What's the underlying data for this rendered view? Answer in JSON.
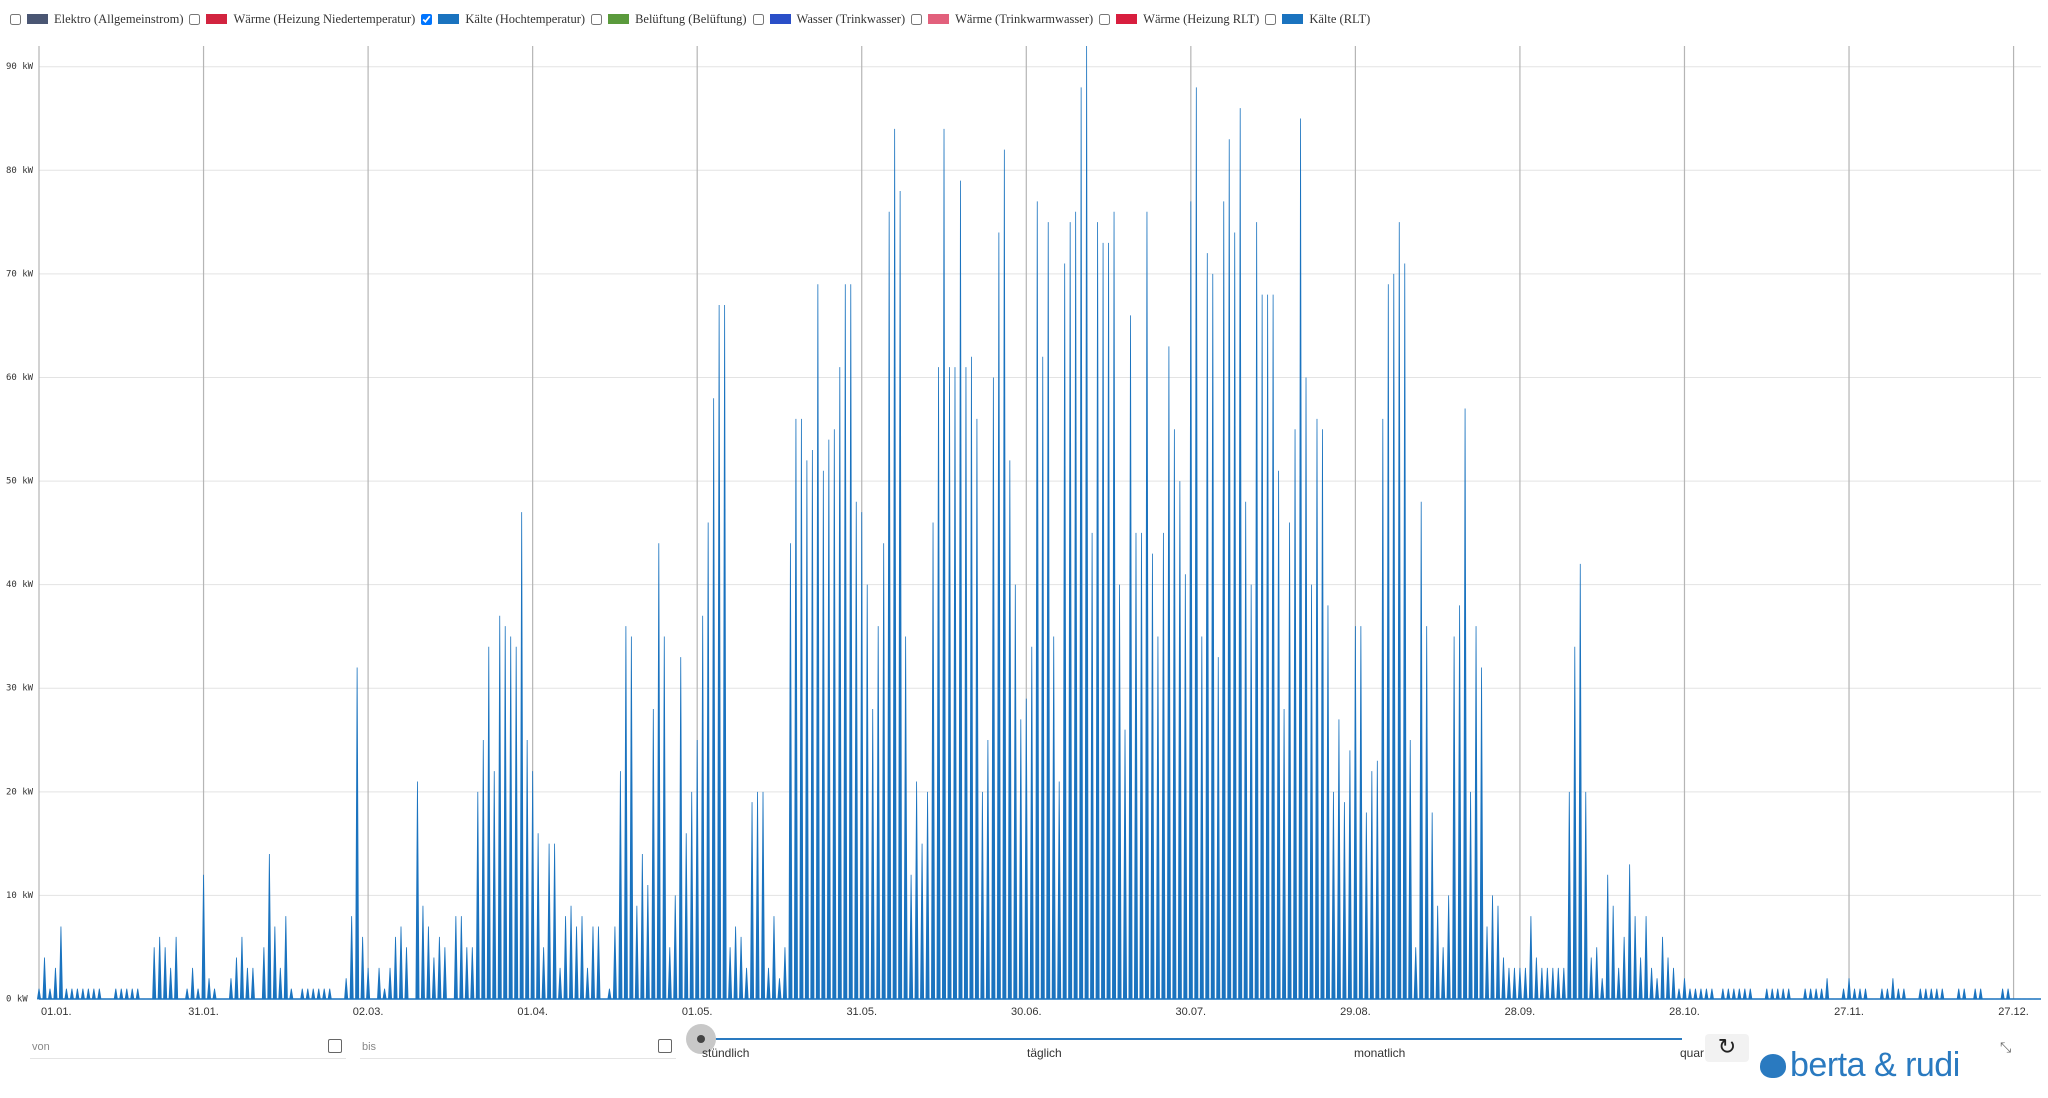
{
  "chart_data": {
    "type": "spike",
    "series": [
      {
        "name": "Elektro (Allgemeinstrom)",
        "color": "#4a5673",
        "checked": false
      },
      {
        "name": "Wärme (Heizung Niedertemperatur)",
        "color": "#d2243f",
        "checked": false
      },
      {
        "name": "Kälte (Hochtemperatur)",
        "color": "#1a73bf",
        "checked": true,
        "x": [
          0,
          1,
          2,
          3,
          4,
          5,
          6,
          7,
          8,
          9,
          10,
          11,
          12,
          13,
          14,
          15,
          16,
          17,
          18,
          19,
          20,
          21,
          22,
          23,
          24,
          25,
          26,
          27,
          28,
          29,
          30,
          31,
          32,
          33,
          34,
          35,
          36,
          37,
          38,
          39,
          40,
          41,
          42,
          43,
          44,
          45,
          46,
          47,
          48,
          49,
          50,
          51,
          52,
          53,
          54,
          55,
          56,
          57,
          58,
          59,
          60,
          61,
          62,
          63,
          64,
          65,
          66,
          67,
          68,
          69,
          70,
          71,
          72,
          73,
          74,
          75,
          76,
          77,
          78,
          79,
          80,
          81,
          82,
          83,
          84,
          85,
          86,
          87,
          88,
          89,
          90,
          91,
          92,
          93,
          94,
          95,
          96,
          97,
          98,
          99,
          100,
          101,
          102,
          103,
          104,
          105,
          106,
          107,
          108,
          109,
          110,
          111,
          112,
          113,
          114,
          115,
          116,
          117,
          118,
          119,
          120,
          121,
          122,
          123,
          124,
          125,
          126,
          127,
          128,
          129,
          130,
          131,
          132,
          133,
          134,
          135,
          136,
          137,
          138,
          139,
          140,
          141,
          142,
          143,
          144,
          145,
          146,
          147,
          148,
          149,
          150,
          151,
          152,
          153,
          154,
          155,
          156,
          157,
          158,
          159,
          160,
          161,
          162,
          163,
          164,
          165,
          166,
          167,
          168,
          169,
          170,
          171,
          172,
          173,
          174,
          175,
          176,
          177,
          178,
          179,
          180,
          181,
          182,
          183,
          184,
          185,
          186,
          187,
          188,
          189,
          190,
          191,
          192,
          193,
          194,
          195,
          196,
          197,
          198,
          199,
          200,
          201,
          202,
          203,
          204,
          205,
          206,
          207,
          208,
          209,
          210,
          211,
          212,
          213,
          214,
          215,
          216,
          217,
          218,
          219,
          220,
          221,
          222,
          223,
          224,
          225,
          226,
          227,
          228,
          229,
          230,
          231,
          232,
          233,
          234,
          235,
          236,
          237,
          238,
          239,
          240,
          241,
          242,
          243,
          244,
          245,
          246,
          247,
          248,
          249,
          250,
          251,
          252,
          253,
          254,
          255,
          256,
          257,
          258,
          259,
          260,
          261,
          262,
          263,
          264,
          265,
          266,
          267,
          268,
          269,
          270,
          271,
          272,
          273,
          274,
          275,
          276,
          277,
          278,
          279,
          280,
          281,
          282,
          283,
          284,
          285,
          286,
          287,
          288,
          289,
          290,
          291,
          292,
          293,
          294,
          295,
          296,
          297,
          298,
          299,
          300,
          301,
          302,
          303,
          304,
          305,
          306,
          307,
          308,
          309,
          310,
          311,
          312,
          313,
          314,
          315,
          316,
          317,
          318,
          319,
          320,
          321,
          322,
          323,
          324,
          325,
          326,
          327,
          328,
          329,
          330,
          331,
          332,
          333,
          334,
          335,
          336,
          337,
          338,
          339,
          340,
          341,
          342,
          343,
          344,
          345,
          346,
          347,
          348,
          349,
          350,
          351,
          352,
          353,
          354,
          355,
          356,
          357,
          358,
          359,
          360,
          361,
          362,
          363,
          364
        ],
        "values": [
          1,
          4,
          1,
          3,
          7,
          1,
          1,
          1,
          1,
          1,
          1,
          1,
          0,
          0,
          1,
          1,
          1,
          1,
          1,
          0,
          0,
          5,
          6,
          5,
          3,
          6,
          0,
          1,
          3,
          1,
          12,
          2,
          1,
          0,
          0,
          2,
          4,
          6,
          3,
          3,
          0,
          5,
          14,
          7,
          3,
          8,
          1,
          0,
          1,
          1,
          1,
          1,
          1,
          1,
          0,
          0,
          2,
          8,
          32,
          6,
          3,
          0,
          3,
          1,
          3,
          6,
          7,
          5,
          0,
          21,
          9,
          7,
          4,
          6,
          5,
          0,
          8,
          8,
          5,
          5,
          20,
          25,
          34,
          22,
          37,
          36,
          35,
          34,
          47,
          25,
          22,
          16,
          5,
          15,
          15,
          3,
          8,
          9,
          7,
          8,
          3,
          7,
          7,
          0,
          1,
          7,
          22,
          36,
          35,
          9,
          14,
          11,
          28,
          44,
          35,
          5,
          10,
          33,
          16,
          20,
          25,
          37,
          46,
          58,
          67,
          67,
          5,
          7,
          6,
          3,
          19,
          20,
          20,
          3,
          8,
          2,
          5,
          44,
          56,
          56,
          52,
          53,
          69,
          51,
          54,
          55,
          61,
          69,
          69,
          48,
          47,
          40,
          28,
          36,
          44,
          76,
          84,
          78,
          35,
          12,
          21,
          15,
          20,
          46,
          61,
          84,
          61,
          61,
          79,
          61,
          62,
          56,
          20,
          25,
          60,
          74,
          82,
          52,
          40,
          27,
          29,
          34,
          77,
          62,
          75,
          35,
          21,
          71,
          75,
          76,
          88,
          92,
          45,
          75,
          73,
          73,
          76,
          40,
          26,
          66,
          45,
          45,
          76,
          43,
          35,
          45,
          63,
          55,
          50,
          41,
          77,
          88,
          35,
          72,
          70,
          33,
          77,
          83,
          74,
          86,
          48,
          40,
          75,
          68,
          68,
          68,
          51,
          28,
          46,
          55,
          85,
          60,
          40,
          56,
          55,
          38,
          20,
          27,
          19,
          24,
          36,
          36,
          18,
          22,
          23,
          56,
          69,
          70,
          75,
          71,
          25,
          5,
          48,
          36,
          18,
          9,
          5,
          10,
          35,
          38,
          57,
          20,
          36,
          32,
          7,
          10,
          9,
          4,
          3,
          3,
          3,
          3,
          8,
          4,
          3,
          3,
          3,
          3,
          3,
          20,
          34,
          42,
          20,
          4,
          5,
          2,
          12,
          9,
          3,
          6,
          13,
          8,
          4,
          8,
          3,
          2,
          6,
          4,
          3,
          1,
          2,
          1,
          1,
          1,
          1,
          1,
          0,
          1,
          1,
          1,
          1,
          1,
          1,
          0,
          0,
          1,
          1,
          1,
          1,
          1,
          0,
          0,
          1,
          1,
          1,
          1,
          2,
          0,
          0,
          1,
          2,
          1,
          1,
          1,
          0,
          0,
          1,
          1,
          2,
          1,
          1,
          0,
          0,
          1,
          1,
          1,
          1,
          1,
          0,
          0,
          1,
          1,
          0,
          1,
          1,
          0,
          0,
          0,
          1,
          1,
          0,
          0,
          0,
          0,
          0
        ]
      },
      {
        "name": "Belüftung (Belüftung)",
        "color": "#5a9a3c",
        "checked": false
      },
      {
        "name": "Wasser (Trinkwasser)",
        "color": "#2a4fc8",
        "checked": false
      },
      {
        "name": "Wärme (Trinkwarmwasser)",
        "color": "#e2607c",
        "checked": false
      },
      {
        "name": "Wärme (Heizung RLT)",
        "color": "#d81e3e",
        "checked": false
      },
      {
        "name": "Kälte (RLT)",
        "color": "#1a73bf",
        "checked": false
      }
    ],
    "xlim": [
      0,
      365
    ],
    "xticks": [
      {
        "value": 0,
        "label": "01.01."
      },
      {
        "value": 30,
        "label": "31.01."
      },
      {
        "value": 60,
        "label": "02.03."
      },
      {
        "value": 90,
        "label": "01.04."
      },
      {
        "value": 120,
        "label": "01.05."
      },
      {
        "value": 150,
        "label": "31.05."
      },
      {
        "value": 180,
        "label": "30.06."
      },
      {
        "value": 210,
        "label": "30.07."
      },
      {
        "value": 240,
        "label": "29.08."
      },
      {
        "value": 270,
        "label": "28.09."
      },
      {
        "value": 300,
        "label": "28.10."
      },
      {
        "value": 330,
        "label": "27.11."
      },
      {
        "value": 360,
        "label": "27.12."
      }
    ],
    "ylim": [
      0,
      92
    ],
    "yticks": [
      {
        "value": 0,
        "label": "0 kW"
      },
      {
        "value": 10,
        "label": "10 kW"
      },
      {
        "value": 20,
        "label": "20 kW"
      },
      {
        "value": 30,
        "label": "30 kW"
      },
      {
        "value": 40,
        "label": "40 kW"
      },
      {
        "value": 50,
        "label": "50 kW"
      },
      {
        "value": 60,
        "label": "60 kW"
      },
      {
        "value": 70,
        "label": "70 kW"
      },
      {
        "value": 80,
        "label": "80 kW"
      },
      {
        "value": 90,
        "label": "90 kW"
      }
    ],
    "grid": true
  },
  "controls": {
    "from": "von",
    "to": "bis",
    "resolutions": [
      "stündlich",
      "täglich",
      "monatlich",
      "quar"
    ]
  },
  "brand": "berta & rudi"
}
